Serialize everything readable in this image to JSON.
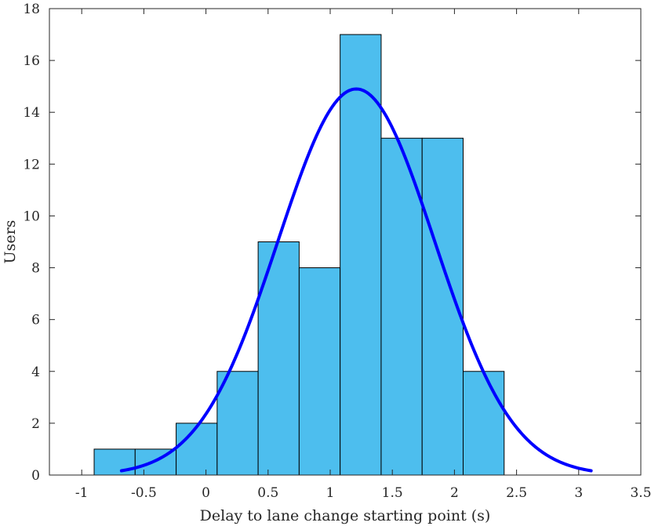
{
  "chart_data": {
    "type": "bar",
    "title": "",
    "xlabel": "Delay to lane change starting point (s)",
    "ylabel": "Users",
    "xlim": [
      -1.26,
      3.5
    ],
    "ylim": [
      0,
      18
    ],
    "grid": false,
    "legend": "none",
    "xticks": [
      -1,
      -0.5,
      0,
      0.5,
      1,
      1.5,
      2,
      2.5,
      3,
      3.5
    ],
    "xtick_labels": [
      "-1",
      "-0.5",
      "0",
      "0.5",
      "1",
      "1.5",
      "2",
      "2.5",
      "3",
      "3.5"
    ],
    "yticks": [
      0,
      2,
      4,
      6,
      8,
      10,
      12,
      14,
      16,
      18
    ],
    "ytick_labels": [
      "0",
      "2",
      "4",
      "6",
      "8",
      "10",
      "12",
      "14",
      "16",
      "18"
    ],
    "bin_edges": [
      -0.9,
      -0.57,
      -0.24,
      0.09,
      0.42,
      0.75,
      1.08,
      1.41,
      1.74,
      2.07,
      2.4
    ],
    "values": [
      1,
      1,
      2,
      4,
      9,
      8,
      17,
      13,
      13,
      4
    ],
    "fit": {
      "type": "normal",
      "x_range": [
        -0.68,
        3.1
      ],
      "mean": 1.21,
      "std": 0.63,
      "peak": 14.9
    },
    "colors": {
      "bar_fill": "#4DBEEE",
      "bar_edge": "#000000",
      "curve": "#0000FF",
      "axis": "#262626"
    }
  }
}
